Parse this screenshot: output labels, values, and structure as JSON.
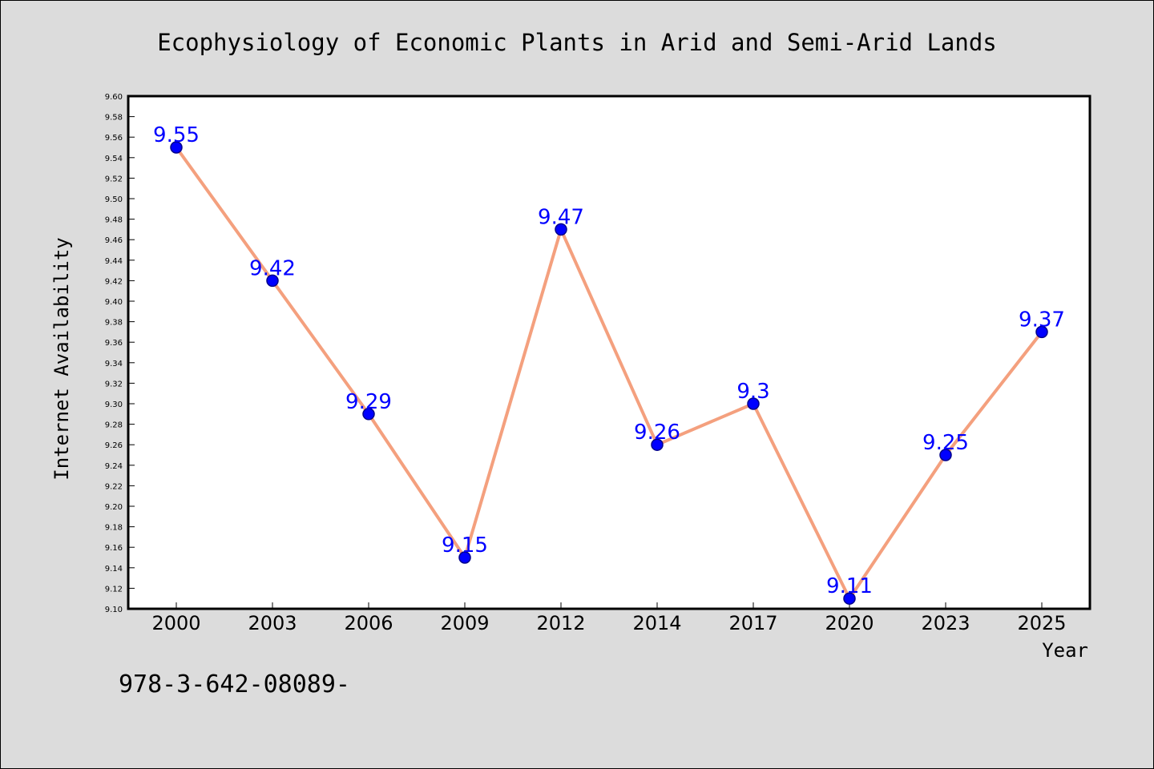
{
  "chart_data": {
    "type": "line",
    "title": "Ecophysiology of Economic Plants in Arid and Semi-Arid Lands",
    "xlabel": "Year",
    "ylabel": "Internet Availability",
    "categories": [
      "2000",
      "2003",
      "2006",
      "2009",
      "2012",
      "2014",
      "2017",
      "2020",
      "2023",
      "2025"
    ],
    "series": [
      {
        "values": [
          9.55,
          9.42,
          9.29,
          9.15,
          9.47,
          9.26,
          9.3,
          9.11,
          9.25,
          9.37
        ],
        "data_labels": [
          "9.55",
          "9.42",
          "9.29",
          "9.15",
          "9.47",
          "9.26",
          "9.3",
          "9.11",
          "9.25",
          "9.37"
        ]
      }
    ],
    "ylim": [
      9.1,
      9.6
    ],
    "yticks": [
      "9.10",
      "9.12",
      "9.14",
      "9.16",
      "9.18",
      "9.20",
      "9.22",
      "9.24",
      "9.26",
      "9.28",
      "9.30",
      "9.32",
      "9.34",
      "9.36",
      "9.38",
      "9.40",
      "9.42",
      "9.44",
      "9.46",
      "9.48",
      "9.50",
      "9.52",
      "9.54",
      "9.56",
      "9.58",
      "9.60"
    ],
    "grid": false,
    "legend": "none",
    "colors": {
      "line": "#f4a07e",
      "marker_fill": "#0000ff",
      "marker_stroke": "#00008b",
      "data_label": "#0000ff",
      "plot_background": "#ffffff",
      "figure_background": "#dcdcdc"
    }
  },
  "footer": {
    "isbn_text": "978-3-642-08089-"
  }
}
